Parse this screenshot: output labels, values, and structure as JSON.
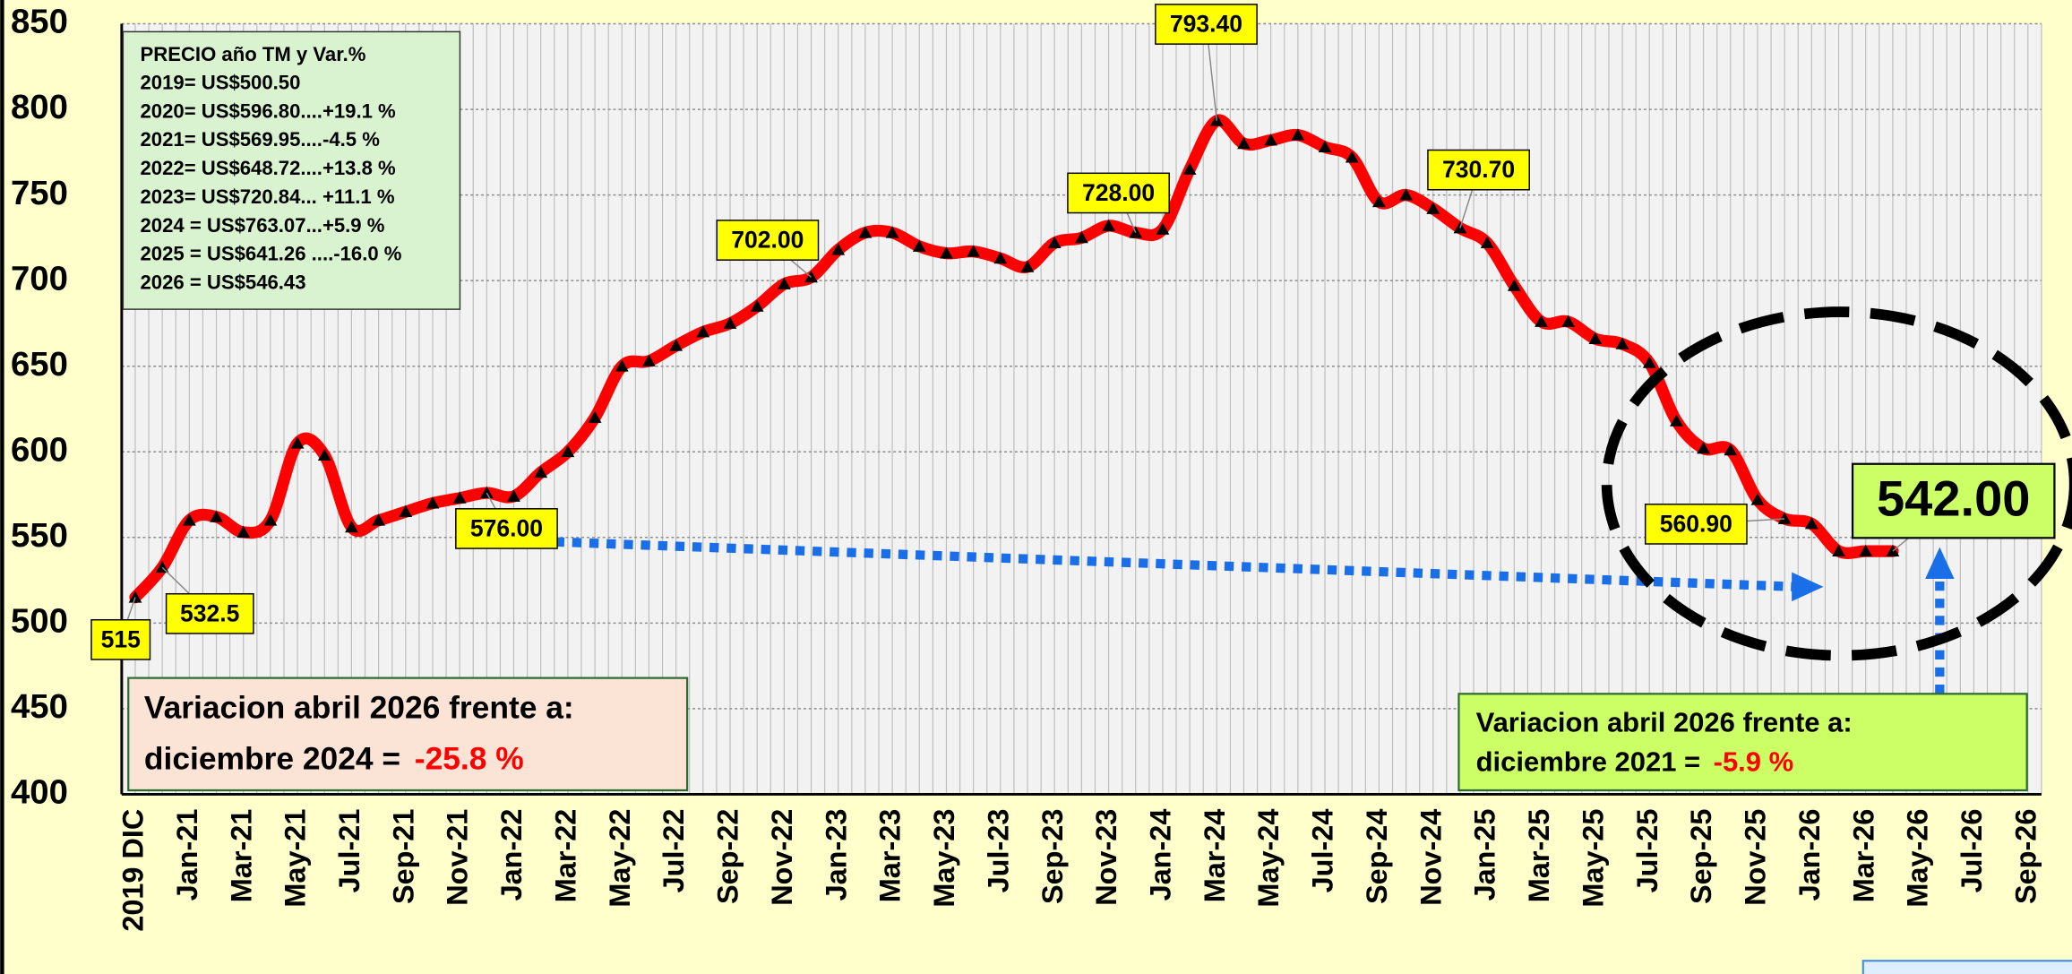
{
  "chart_data": {
    "type": "line",
    "categories": [
      "2019 DIC",
      null,
      "Jan-21",
      null,
      "Mar-21",
      null,
      "May-21",
      null,
      "Jul-21",
      null,
      "Sep-21",
      null,
      "Nov-21",
      null,
      "Jan-22",
      null,
      "Mar-22",
      null,
      "May-22",
      null,
      "Jul-22",
      null,
      "Sep-22",
      null,
      "Nov-22",
      null,
      "Jan-23",
      null,
      "Mar-23",
      null,
      "May-23",
      null,
      "Jul-23",
      null,
      "Sep-23",
      null,
      "Nov-23",
      null,
      "Jan-24",
      null,
      "Mar-24",
      null,
      "May-24",
      null,
      "Jul-24",
      null,
      "Sep-24",
      null,
      "Nov-24",
      null,
      "Jan-25",
      null,
      "Mar-25",
      null,
      "May-25",
      null,
      "Jul-25",
      null,
      "Sep-25",
      null,
      "Nov-25",
      null,
      "Jan-26",
      null,
      "Mar-26",
      null,
      "May-26",
      null,
      "Jul-26",
      null,
      "Sep-26"
    ],
    "values": [
      515,
      532.5,
      560,
      562,
      553,
      560,
      605,
      598,
      556,
      560,
      565,
      570,
      573,
      576,
      574,
      588,
      600,
      620,
      650,
      653,
      662,
      670,
      675,
      685,
      698,
      702,
      718,
      728,
      728,
      720,
      716,
      717,
      713,
      708,
      722,
      725,
      732,
      728,
      730,
      765,
      793.4,
      780,
      782,
      785,
      778,
      772,
      746,
      750,
      742,
      730.7,
      722,
      697,
      676,
      676,
      666,
      663,
      652,
      618,
      602,
      601,
      572,
      560.9,
      558,
      542,
      542,
      542,
      null,
      null,
      null,
      null,
      null
    ],
    "value_labels": [
      "515",
      "532.5",
      null,
      null,
      null,
      null,
      null,
      null,
      null,
      null,
      null,
      null,
      null,
      "576.00",
      null,
      null,
      null,
      null,
      null,
      null,
      null,
      null,
      null,
      null,
      null,
      "702.00",
      null,
      null,
      null,
      null,
      null,
      null,
      null,
      null,
      null,
      null,
      null,
      "728.00",
      null,
      null,
      "793.40",
      null,
      null,
      null,
      null,
      null,
      null,
      null,
      null,
      "730.70",
      null,
      null,
      null,
      null,
      null,
      null,
      null,
      null,
      null,
      null,
      null,
      "560.90",
      null,
      null,
      null,
      "542.00",
      null,
      null,
      null,
      null,
      null
    ],
    "color": "#ff0000",
    "marker_color": "#000000",
    "ylim": [
      400,
      850
    ],
    "yticks": [
      400,
      450,
      500,
      550,
      600,
      650,
      700,
      750,
      800,
      850
    ],
    "grid": true,
    "info_box": {
      "title": "PRECIO año TM y Var.%",
      "lines": [
        "2019= US$500.50",
        "2020= US$596.80....+19.1 %",
        "2021= US$569.95....-4.5 %",
        "2022= US$648.72....+13.8 %",
        "2023= US$720.84... +11.1 %",
        "2024 = US$763.07...+5.9 %",
        "2025 = US$641.26 ....-16.0 %",
        "2026 = US$546.43"
      ]
    },
    "variation_boxes": [
      {
        "line1": "Variacion abril 2026 frente a:",
        "line2": "diciembre 2024 = ",
        "value": "-25.8 %"
      },
      {
        "line1": "Variacion abril 2026 frente a:",
        "line2": "diciembre 2021 = ",
        "value": "-5.9 %"
      }
    ]
  }
}
